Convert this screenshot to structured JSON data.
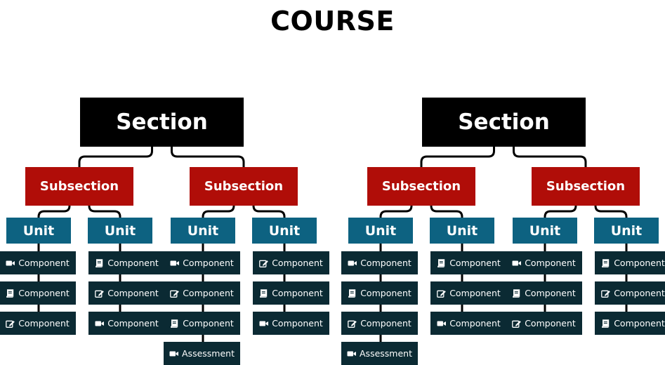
{
  "title": "COURSE",
  "colors": {
    "section": "#000000",
    "subsection": "#b00d08",
    "unit": "#0d6281",
    "component": "#0b2a33",
    "connector": "#000000",
    "text": "#ffffff"
  },
  "sections": [
    {
      "label": "Section",
      "subsections": [
        {
          "label": "Subsection",
          "units": [
            {
              "label": "Unit",
              "components": [
                {
                  "label": "Component",
                  "icon": "video-icon"
                },
                {
                  "label": "Component",
                  "icon": "book-icon"
                },
                {
                  "label": "Component",
                  "icon": "edit-icon"
                }
              ]
            },
            {
              "label": "Unit",
              "components": [
                {
                  "label": "Component",
                  "icon": "book-icon"
                },
                {
                  "label": "Component",
                  "icon": "edit-icon"
                },
                {
                  "label": "Component",
                  "icon": "video-icon"
                }
              ]
            }
          ]
        },
        {
          "label": "Subsection",
          "units": [
            {
              "label": "Unit",
              "components": [
                {
                  "label": "Component",
                  "icon": "video-icon"
                },
                {
                  "label": "Component",
                  "icon": "edit-icon"
                },
                {
                  "label": "Component",
                  "icon": "book-icon"
                },
                {
                  "label": "Assessment",
                  "icon": "video-icon"
                }
              ]
            },
            {
              "label": "Unit",
              "components": [
                {
                  "label": "Component",
                  "icon": "edit-icon"
                },
                {
                  "label": "Component",
                  "icon": "book-icon"
                },
                {
                  "label": "Component",
                  "icon": "video-icon"
                }
              ]
            }
          ]
        }
      ]
    },
    {
      "label": "Section",
      "subsections": [
        {
          "label": "Subsection",
          "units": [
            {
              "label": "Unit",
              "components": [
                {
                  "label": "Component",
                  "icon": "video-icon"
                },
                {
                  "label": "Component",
                  "icon": "book-icon"
                },
                {
                  "label": "Component",
                  "icon": "edit-icon"
                },
                {
                  "label": "Assessment",
                  "icon": "video-icon"
                }
              ]
            },
            {
              "label": "Unit",
              "components": [
                {
                  "label": "Component",
                  "icon": "book-icon"
                },
                {
                  "label": "Component",
                  "icon": "edit-icon"
                },
                {
                  "label": "Component",
                  "icon": "video-icon"
                }
              ]
            }
          ]
        },
        {
          "label": "Subsection",
          "units": [
            {
              "label": "Unit",
              "components": [
                {
                  "label": "Component",
                  "icon": "video-icon"
                },
                {
                  "label": "Component",
                  "icon": "book-icon"
                },
                {
                  "label": "Component",
                  "icon": "edit-icon"
                }
              ]
            },
            {
              "label": "Unit",
              "components": [
                {
                  "label": "Component",
                  "icon": "book-icon"
                },
                {
                  "label": "Component",
                  "icon": "edit-icon"
                },
                {
                  "label": "Component",
                  "icon": "book-icon"
                }
              ]
            }
          ]
        }
      ]
    }
  ]
}
